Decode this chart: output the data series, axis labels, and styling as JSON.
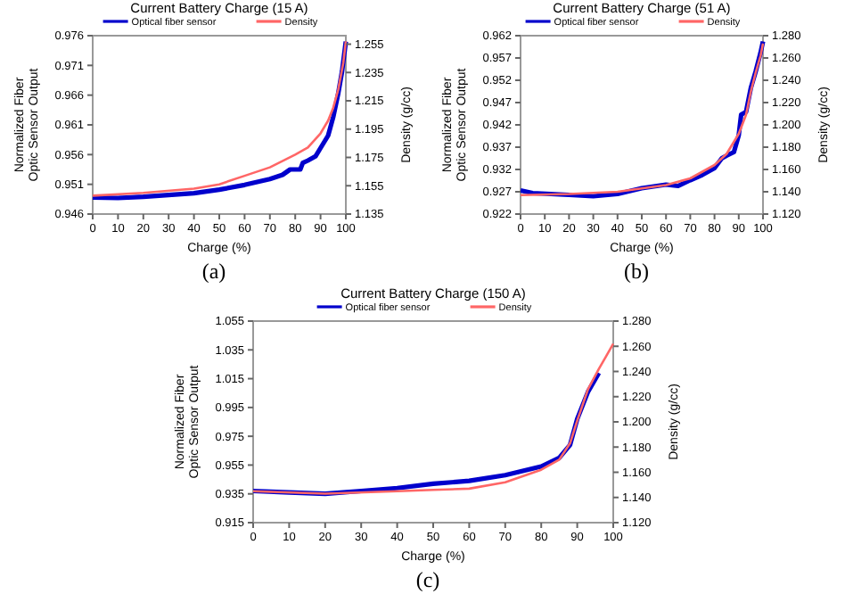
{
  "chart_data": [
    {
      "type": "line",
      "title": "Current Battery Charge (15 A)",
      "xlabel": "Charge (%)",
      "ylabel": "Normalized Fiber Optic Sensor Output",
      "y2label": "Density (g/cc)",
      "legend": "top",
      "grid": false,
      "marker": "none",
      "line_style": "solid",
      "annotations": [
        "(a)"
      ],
      "xlim": [
        0,
        100
      ],
      "xticks": [
        0,
        10,
        20,
        30,
        40,
        50,
        60,
        70,
        80,
        90,
        100
      ],
      "ylim": [
        0.946,
        0.976
      ],
      "yticks": [
        0.946,
        0.951,
        0.956,
        0.961,
        0.966,
        0.971,
        0.976
      ],
      "y2lim": [
        1.135,
        1.261
      ],
      "y2ticks": [
        1.135,
        1.155,
        1.175,
        1.195,
        1.215,
        1.235,
        1.255
      ],
      "series": [
        {
          "name": "Optical fiber sensor",
          "color": "#0000cc",
          "x": [
            0,
            10,
            20,
            30,
            40,
            50,
            60,
            70,
            75,
            78,
            82,
            83,
            85,
            88,
            90,
            93,
            95,
            97,
            98.5,
            100
          ],
          "values": [
            0.9488,
            0.9487,
            0.9489,
            0.9492,
            0.9495,
            0.9501,
            0.9509,
            0.9519,
            0.9526,
            0.9535,
            0.9535,
            0.9546,
            0.955,
            0.9557,
            0.9571,
            0.9592,
            0.9623,
            0.9663,
            0.97,
            0.975
          ]
        },
        {
          "name": "Density",
          "color": "#ff6666",
          "axis": "y2",
          "x": [
            0,
            20,
            40,
            50,
            60,
            70,
            80,
            85,
            90,
            93,
            95,
            97,
            99,
            100
          ],
          "values": [
            1.148,
            1.15,
            1.153,
            1.156,
            1.162,
            1.168,
            1.177,
            1.182,
            1.192,
            1.201,
            1.21,
            1.223,
            1.242,
            1.257
          ]
        }
      ]
    },
    {
      "type": "line",
      "title": "Current Battery Charge (51 A)",
      "xlabel": "Charge (%)",
      "ylabel": "Normalized Fiber Optic Sensor Output",
      "y2label": "Density (g/cc)",
      "legend": "top",
      "grid": false,
      "marker": "none",
      "line_style": "solid",
      "annotations": [
        "(b)"
      ],
      "xlim": [
        0,
        100
      ],
      "xticks": [
        0,
        10,
        20,
        30,
        40,
        50,
        60,
        70,
        80,
        90,
        100
      ],
      "ylim": [
        0.922,
        0.962
      ],
      "yticks": [
        0.922,
        0.927,
        0.932,
        0.937,
        0.942,
        0.947,
        0.952,
        0.957,
        0.962
      ],
      "y2lim": [
        1.12,
        1.28
      ],
      "y2ticks": [
        {
          "value": 1.12,
          "label": "1.120"
        },
        {
          "value": 1.14,
          "label": "1.140"
        },
        {
          "value": 1.16,
          "label": "1.160"
        },
        {
          "value": 1.18,
          "label": "1.180"
        },
        {
          "value": 1.2,
          "label": "1.200"
        },
        {
          "value": 1.22,
          "label": "1.220"
        },
        {
          "value": 1.24,
          "label": "1.240"
        },
        {
          "value": 1.26,
          "label": "1.260"
        },
        {
          "value": 1.28,
          "label": "1.280"
        }
      ],
      "series": [
        {
          "name": "Optical fiber sensor",
          "color": "#0000cc",
          "x": [
            0,
            5,
            20,
            30,
            40,
            50,
            60,
            65,
            70,
            75,
            80,
            83,
            85,
            88,
            90,
            91,
            93,
            95,
            97,
            99,
            100
          ],
          "values": [
            0.9273,
            0.9267,
            0.9263,
            0.926,
            0.9265,
            0.9278,
            0.9286,
            0.9283,
            0.9296,
            0.9308,
            0.9323,
            0.9345,
            0.9351,
            0.9359,
            0.9397,
            0.9443,
            0.9449,
            0.9503,
            0.954,
            0.9582,
            0.9607
          ]
        },
        {
          "name": "Density",
          "color": "#ff6666",
          "axis": "y2",
          "x": [
            0,
            20,
            40,
            50,
            60,
            70,
            80,
            85,
            90,
            93,
            95,
            97,
            99,
            100
          ],
          "values": [
            1.137,
            1.138,
            1.14,
            1.143,
            1.146,
            1.152,
            1.164,
            1.174,
            1.192,
            1.209,
            1.23,
            1.247,
            1.262,
            1.273
          ]
        }
      ]
    },
    {
      "type": "line",
      "title": "Current Battery Charge (150 A)",
      "xlabel": "Charge (%)",
      "ylabel": "Normalized Fiber Optic Sensor Output",
      "y2label": "Density (g/cc)",
      "legend": "top",
      "grid": false,
      "marker": "none",
      "line_style": "solid",
      "annotations": [
        "(c)"
      ],
      "xlim": [
        0,
        100
      ],
      "xticks": [
        0,
        10,
        20,
        30,
        40,
        50,
        60,
        70,
        80,
        90,
        100
      ],
      "ylim": [
        0.915,
        1.055
      ],
      "yticks": [
        0.915,
        0.935,
        0.955,
        0.975,
        0.995,
        1.015,
        1.035,
        1.055
      ],
      "y2lim": [
        1.12,
        1.28
      ],
      "y2ticks": [
        {
          "value": 1.12,
          "label": "1.120"
        },
        {
          "value": 1.14,
          "label": "1.140"
        },
        {
          "value": 1.16,
          "label": "1.160"
        },
        {
          "value": 1.18,
          "label": "1.180"
        },
        {
          "value": 1.2,
          "label": "1.200"
        },
        {
          "value": 1.22,
          "label": "1.220"
        },
        {
          "value": 1.24,
          "label": "1.240"
        },
        {
          "value": 1.26,
          "label": "1.260"
        },
        {
          "value": 1.28,
          "label": "1.280"
        }
      ],
      "series": [
        {
          "name": "Optical fiber sensor",
          "color": "#0000cc",
          "x": [
            0,
            10,
            20,
            30,
            40,
            50,
            60,
            70,
            80,
            85,
            88,
            90,
            93,
            96
          ],
          "values": [
            0.937,
            0.936,
            0.935,
            0.937,
            0.939,
            0.942,
            0.944,
            0.948,
            0.954,
            0.96,
            0.969,
            0.987,
            1.006,
            1.019
          ]
        },
        {
          "name": "Density",
          "color": "#ff6666",
          "axis": "y2",
          "x": [
            0,
            20,
            40,
            50,
            60,
            70,
            80,
            85,
            88,
            90,
            93,
            96,
            98,
            100
          ],
          "values": [
            1.145,
            1.143,
            1.145,
            1.146,
            1.147,
            1.152,
            1.162,
            1.17,
            1.183,
            1.201,
            1.226,
            1.242,
            1.252,
            1.262
          ]
        }
      ]
    }
  ]
}
